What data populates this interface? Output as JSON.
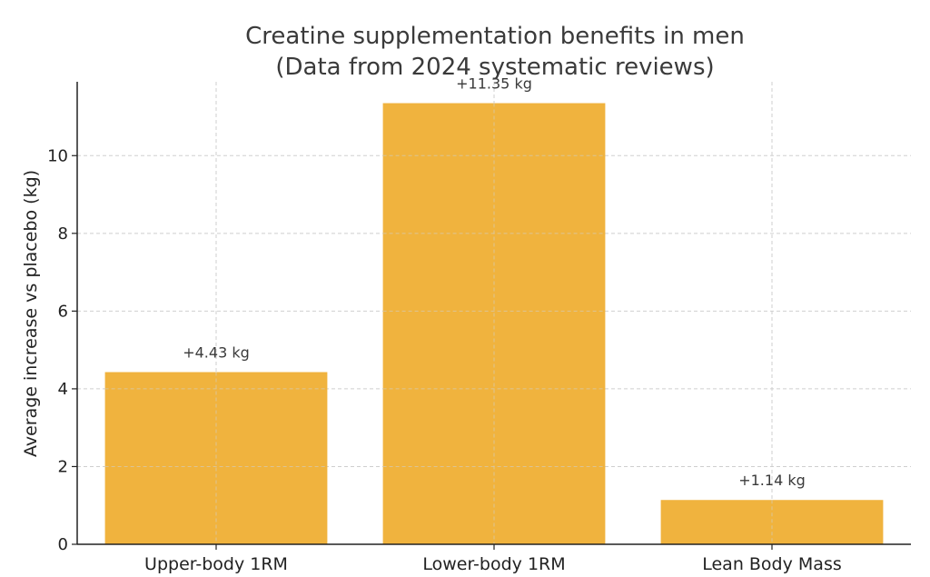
{
  "chart_data": {
    "type": "bar",
    "title_lines": [
      "Creatine supplementation benefits in men",
      "(Data from 2024 systematic reviews)"
    ],
    "xlabel": "",
    "ylabel": "Average increase vs placebo (kg)",
    "categories": [
      "Upper-body 1RM",
      "Lower-body 1RM",
      "Lean Body Mass"
    ],
    "values": [
      4.43,
      11.35,
      1.14
    ],
    "data_labels": [
      "+4.43 kg",
      "+11.35 kg",
      "+1.14 kg"
    ],
    "ylim": [
      0,
      11.9
    ],
    "yticks": [
      0,
      2,
      4,
      6,
      8,
      10
    ],
    "grid": true,
    "bar_color": "#F0B33E",
    "axis_color": "#222222",
    "grid_color": "#cfcfcf"
  }
}
